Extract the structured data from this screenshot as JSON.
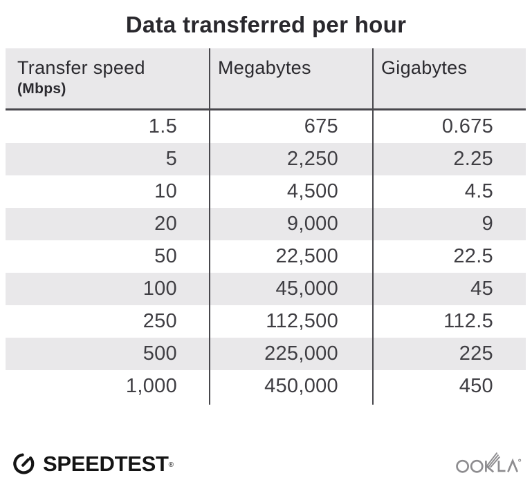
{
  "title": "Data transferred per hour",
  "table": {
    "headers": [
      {
        "label": "Transfer speed",
        "sublabel": "(Mbps)"
      },
      {
        "label": "Megabytes"
      },
      {
        "label": "Gigabytes"
      }
    ],
    "rows": [
      [
        "1.5",
        "675",
        "0.675"
      ],
      [
        "5",
        "2,250",
        "2.25"
      ],
      [
        "10",
        "4,500",
        "4.5"
      ],
      [
        "20",
        "9,000",
        "9"
      ],
      [
        "50",
        "22,500",
        "22.5"
      ],
      [
        "100",
        "45,000",
        "45"
      ],
      [
        "250",
        "112,500",
        "112.5"
      ],
      [
        "500",
        "225,000",
        "225"
      ],
      [
        "1,000",
        "450,000",
        "450"
      ]
    ]
  },
  "footer": {
    "speedtest_label": "SPEEDTEST",
    "speedtest_trademark": "®",
    "ookla_label": "OOKLA"
  },
  "colors": {
    "header_bg": "#e9e8ea",
    "stripe_bg": "#e9e8ea",
    "line_dark": "#48474c",
    "text_dark": "#29282d",
    "number_text": "#3f3e43",
    "speedtest_black": "#141414",
    "ookla_gray": "#8d8c8f"
  },
  "chart_data": {
    "type": "table",
    "title": "Data transferred per hour",
    "columns": [
      "Transfer speed (Mbps)",
      "Megabytes",
      "Gigabytes"
    ],
    "rows": [
      [
        1.5,
        675,
        0.675
      ],
      [
        5,
        2250,
        2.25
      ],
      [
        10,
        4500,
        4.5
      ],
      [
        20,
        9000,
        9
      ],
      [
        50,
        22500,
        22.5
      ],
      [
        100,
        45000,
        45
      ],
      [
        250,
        112500,
        112.5
      ],
      [
        500,
        225000,
        225
      ],
      [
        1000,
        450000,
        450
      ]
    ]
  }
}
